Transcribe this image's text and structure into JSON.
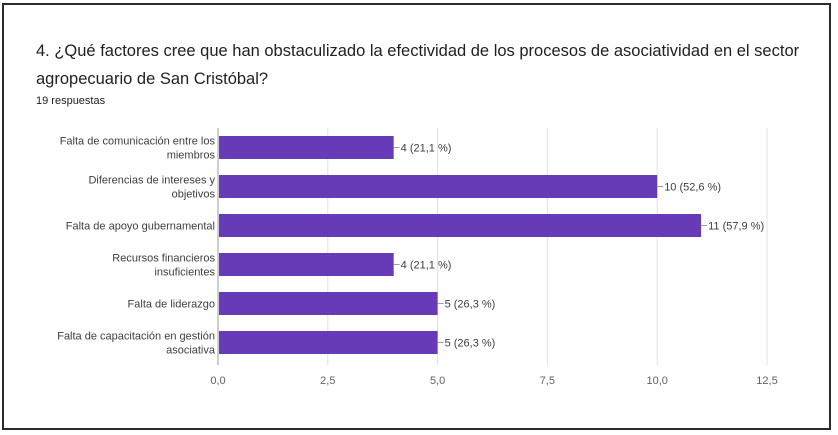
{
  "question": {
    "title": "4. ¿Qué factores cree que han obstaculizado la efectividad de los procesos de asociatividad en el sector agropecuario de San Cristóbal?",
    "responses": "19 respuestas"
  },
  "chart_data": {
    "type": "bar",
    "orientation": "horizontal",
    "categories": [
      [
        "Falta de comunicación entre los",
        "miembros"
      ],
      [
        "Diferencias de intereses y",
        "objetivos"
      ],
      [
        "Falta de apoyo gubernamental"
      ],
      [
        "Recursos financieros",
        "insuficientes"
      ],
      [
        "Falta de liderazgo"
      ],
      [
        "Falta de capacitación en gestión",
        "asociativa"
      ]
    ],
    "values": [
      4,
      10,
      11,
      4,
      5,
      5
    ],
    "data_labels": [
      "4 (21,1 %)",
      "10 (52,6 %)",
      "11 (57,9 %)",
      "4 (21,1 %)",
      "5 (26,3 %)",
      "5 (26,3 %)"
    ],
    "x_ticks": [
      "0,0",
      "2,5",
      "5,0",
      "7,5",
      "10,0",
      "12,5"
    ],
    "xlim": [
      0,
      12.5
    ],
    "grid": true,
    "bar_color": "#673ab7"
  }
}
